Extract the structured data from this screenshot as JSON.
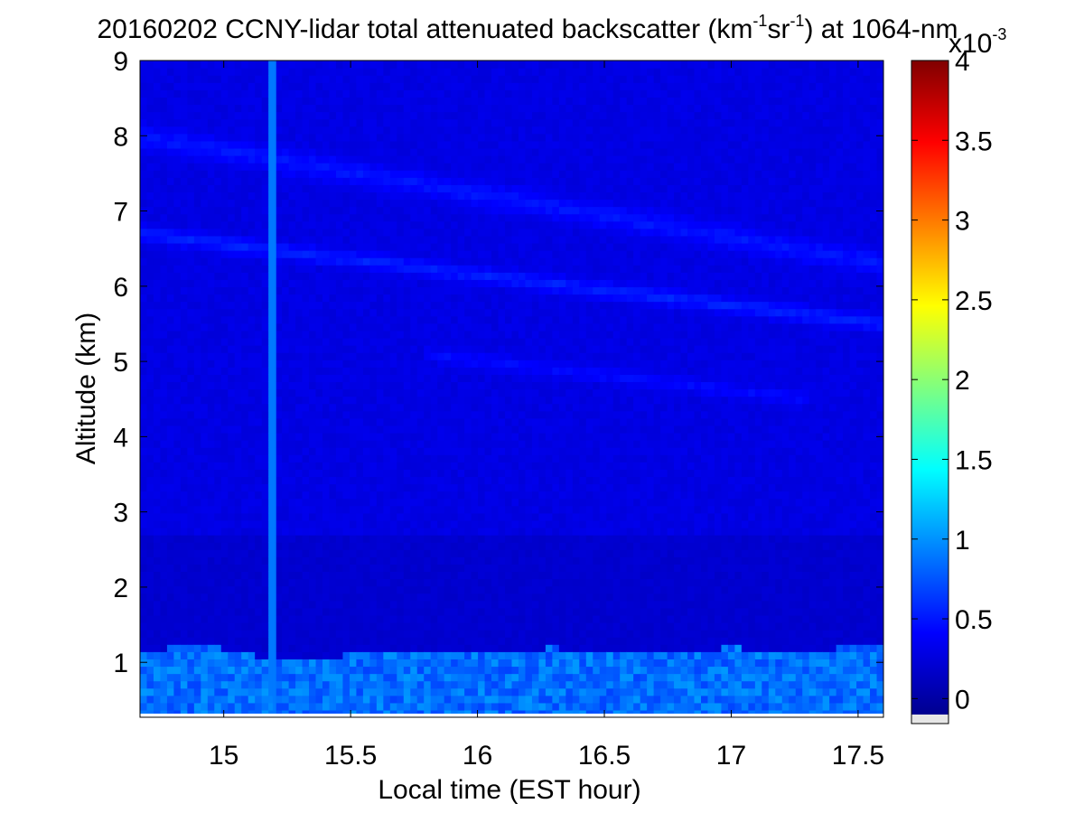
{
  "chart_data": {
    "type": "heatmap",
    "title_parts": {
      "prefix": "20160202 CCNY-lidar total attenuated backscatter (km",
      "sup1": "-1",
      "mid": "sr",
      "sup2": "-1",
      "suffix": ") at 1064-nm"
    },
    "xlabel": "Local time (EST hour)",
    "ylabel": "Altitude (km)",
    "xlim": [
      14.67,
      17.6
    ],
    "ylim": [
      0.27,
      9
    ],
    "x_ticks": [
      15,
      15.5,
      16,
      16.5,
      17,
      17.5
    ],
    "x_tick_labels": [
      "15",
      "15.5",
      "16",
      "16.5",
      "17",
      "17.5"
    ],
    "y_ticks": [
      1,
      2,
      3,
      4,
      5,
      6,
      7,
      8,
      9
    ],
    "y_tick_labels": [
      "1",
      "2",
      "3",
      "4",
      "5",
      "6",
      "7",
      "8",
      "9"
    ],
    "colorbar": {
      "colormap": "jet",
      "range": [
        -0.1,
        4
      ],
      "ticks": [
        0,
        0.5,
        1,
        1.5,
        2,
        2.5,
        3,
        3.5,
        4
      ],
      "tick_labels": [
        "0",
        "0.5",
        "1",
        "1.5",
        "2",
        "2.5",
        "3",
        "3.5",
        "4"
      ],
      "exponent_base": "x10",
      "exponent": "-3",
      "below_range_color": "#e6e6e6"
    },
    "features": {
      "boundary_layer_top_km": [
        {
          "t": 14.67,
          "z": 1.15
        },
        {
          "t": 14.9,
          "z": 1.25
        },
        {
          "t": 15.2,
          "z": 1.05
        },
        {
          "t": 15.5,
          "z": 1.1
        },
        {
          "t": 15.8,
          "z": 1.15
        },
        {
          "t": 16.0,
          "z": 1.1
        },
        {
          "t": 16.3,
          "z": 1.2
        },
        {
          "t": 16.6,
          "z": 1.1
        },
        {
          "t": 17.0,
          "z": 1.2
        },
        {
          "t": 17.3,
          "z": 1.15
        },
        {
          "t": 17.6,
          "z": 1.25
        }
      ],
      "boundary_layer_value": 0.85,
      "free_troposphere_value": 0.3,
      "cloud_layers": [
        {
          "t_start": 14.67,
          "t_end": 17.6,
          "z_start": 6.7,
          "z_end": 5.5,
          "thickness_km": 0.35,
          "value": 0.55
        },
        {
          "t_start": 14.67,
          "t_end": 17.6,
          "z_start": 8.0,
          "z_end": 6.3,
          "thickness_km": 0.6,
          "value": 0.5
        },
        {
          "t_start": 15.8,
          "t_end": 17.3,
          "z_start": 5.1,
          "z_end": 4.5,
          "thickness_km": 0.4,
          "value": 0.45
        }
      ],
      "vertical_streak": {
        "t": 15.2,
        "value": 0.9
      }
    }
  }
}
